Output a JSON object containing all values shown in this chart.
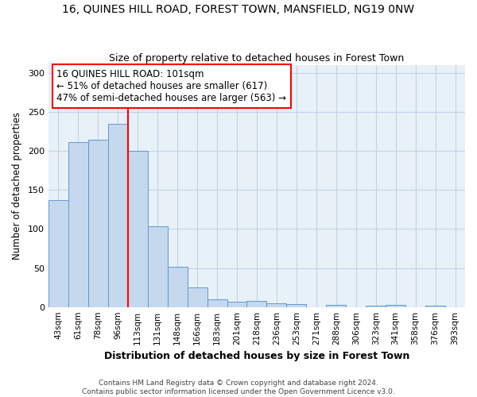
{
  "title": "16, QUINES HILL ROAD, FOREST TOWN, MANSFIELD, NG19 0NW",
  "subtitle": "Size of property relative to detached houses in Forest Town",
  "xlabel": "Distribution of detached houses by size in Forest Town",
  "ylabel": "Number of detached properties",
  "bar_labels": [
    "43sqm",
    "61sqm",
    "78sqm",
    "96sqm",
    "113sqm",
    "131sqm",
    "148sqm",
    "166sqm",
    "183sqm",
    "201sqm",
    "218sqm",
    "236sqm",
    "253sqm",
    "271sqm",
    "288sqm",
    "306sqm",
    "323sqm",
    "341sqm",
    "358sqm",
    "376sqm",
    "393sqm"
  ],
  "bar_values": [
    137,
    211,
    214,
    235,
    200,
    103,
    52,
    25,
    10,
    7,
    8,
    5,
    4,
    0,
    3,
    0,
    2,
    3,
    0,
    2,
    0
  ],
  "bar_color": "#c5d8ed",
  "bar_edge_color": "#5b9bd5",
  "red_line_x": 3.5,
  "annotation_line1": "16 QUINES HILL ROAD: 101sqm",
  "annotation_line2": "← 51% of detached houses are smaller (617)",
  "annotation_line3": "47% of semi-detached houses are larger (563) →",
  "annotation_box_color": "white",
  "annotation_box_edge_color": "red",
  "ylim": [
    0,
    310
  ],
  "yticks": [
    0,
    50,
    100,
    150,
    200,
    250,
    300
  ],
  "grid_color": "#c0d4e8",
  "background_color": "#e8f0f8",
  "footer_line1": "Contains HM Land Registry data © Crown copyright and database right 2024.",
  "footer_line2": "Contains public sector information licensed under the Open Government Licence v3.0."
}
